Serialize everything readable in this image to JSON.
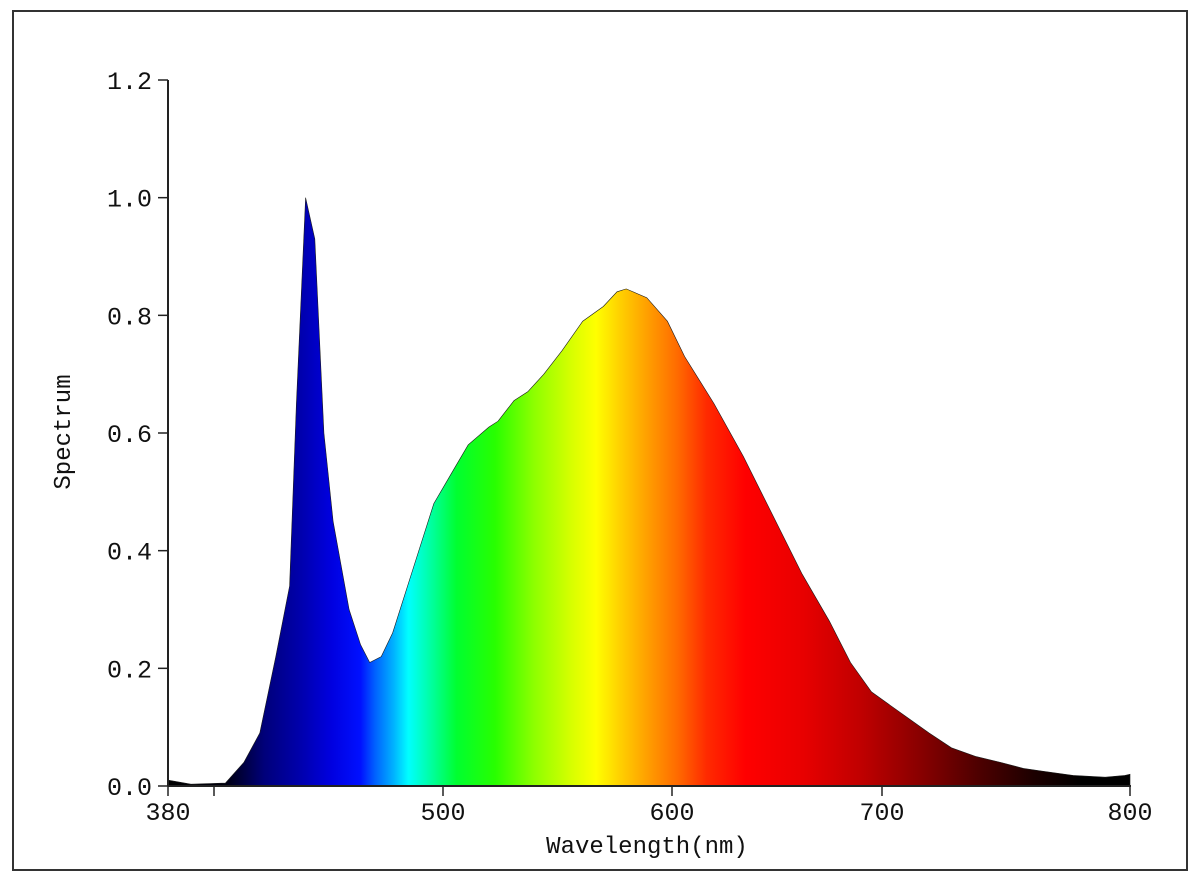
{
  "chart_data": {
    "type": "area",
    "title": "",
    "xlabel": "Wavelength(nm)",
    "ylabel": "Spectrum",
    "xlim": [
      380,
      800
    ],
    "ylim": [
      0,
      1.2
    ],
    "grid": false,
    "legend": null,
    "x_ticks": [
      380,
      400,
      500,
      600,
      700,
      800
    ],
    "x_tick_labels": [
      "380",
      "",
      "500",
      "600",
      "700",
      "800"
    ],
    "y_ticks": [
      0.0,
      0.2,
      0.4,
      0.6,
      0.8,
      1.0,
      1.2
    ],
    "y_tick_labels": [
      "0.0",
      "0.2",
      "0.4",
      "0.6",
      "0.8",
      "1.0",
      "1.2"
    ],
    "fill": "visible-spectrum gradient (blue to red, fading to black in infrared)",
    "series": [
      {
        "name": "Spectrum",
        "x": [
          380,
          390,
          405,
          413,
          420,
          427,
          433,
          436,
          440,
          444,
          448,
          452,
          459,
          464,
          468,
          473,
          478,
          487,
          496,
          505,
          511,
          520,
          524,
          531,
          537,
          544,
          552,
          561,
          570,
          576,
          580,
          589,
          598,
          606,
          620,
          634,
          648,
          662,
          675,
          685,
          695,
          709,
          719,
          728,
          738,
          748,
          757,
          765,
          777,
          790,
          798,
          800
        ],
        "values": [
          0.01,
          0.003,
          0.005,
          0.04,
          0.09,
          0.22,
          0.34,
          0.65,
          1.0,
          0.93,
          0.6,
          0.45,
          0.3,
          0.24,
          0.21,
          0.22,
          0.26,
          0.37,
          0.48,
          0.54,
          0.58,
          0.61,
          0.62,
          0.655,
          0.67,
          0.7,
          0.74,
          0.79,
          0.815,
          0.84,
          0.845,
          0.83,
          0.79,
          0.73,
          0.65,
          0.56,
          0.46,
          0.36,
          0.28,
          0.21,
          0.16,
          0.12,
          0.09,
          0.065,
          0.05,
          0.04,
          0.03,
          0.025,
          0.018,
          0.015,
          0.018,
          0.02
        ]
      }
    ],
    "annotations": []
  }
}
